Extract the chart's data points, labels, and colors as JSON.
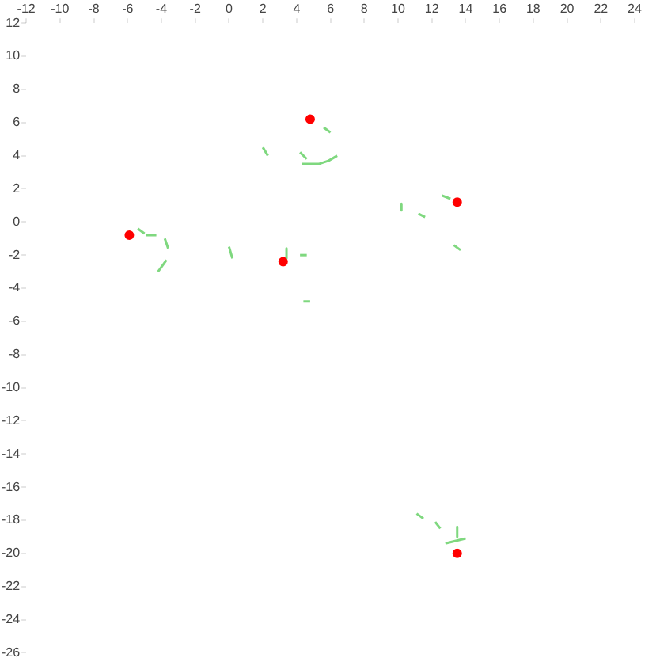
{
  "chart_data": {
    "type": "scatter",
    "xlim": [
      -12,
      24
    ],
    "xticks": [
      -12,
      -10,
      -8,
      -6,
      -4,
      -2,
      0,
      2,
      4,
      6,
      8,
      10,
      12,
      14,
      16,
      18,
      20,
      22,
      24
    ],
    "ylim": [
      -26,
      12
    ],
    "yticks": [
      12,
      10,
      8,
      6,
      4,
      2,
      0,
      -2,
      -4,
      -6,
      -8,
      -10,
      -12,
      -14,
      -16,
      -18,
      -20,
      -22,
      -24,
      -26
    ],
    "grid": false,
    "legend": false,
    "marker": "none",
    "line_style": "solid",
    "series": [
      {
        "color": "#ff0000",
        "marker": "circle",
        "x": [
          4.8,
          13.5,
          -5.9,
          3.2,
          13.5
        ],
        "values": [
          6.2,
          1.2,
          -0.8,
          -2.4,
          -20
        ]
      },
      {
        "type": "line",
        "color": "#7fd87f",
        "x": [
          4.3,
          5.3,
          5.9,
          6.4
        ],
        "values": [
          3.5,
          3.5,
          3.7,
          4.0
        ]
      },
      {
        "type": "line",
        "color": "#7fd87f",
        "x": [
          2.0,
          2.3
        ],
        "values": [
          4.5,
          4.0
        ]
      },
      {
        "type": "line",
        "color": "#7fd87f",
        "x": [
          4.2,
          4.6
        ],
        "values": [
          4.2,
          3.8
        ]
      },
      {
        "type": "line",
        "color": "#7fd87f",
        "x": [
          5.6,
          6.0
        ],
        "values": [
          5.7,
          5.4
        ]
      },
      {
        "type": "line",
        "color": "#7fd87f",
        "x": [
          -5.4,
          -5.0
        ],
        "values": [
          -0.4,
          -0.7
        ]
      },
      {
        "type": "line",
        "color": "#7fd87f",
        "x": [
          -4.9,
          -4.3
        ],
        "values": [
          -0.8,
          -0.8
        ]
      },
      {
        "type": "line",
        "color": "#7fd87f",
        "x": [
          -3.8,
          -3.6
        ],
        "values": [
          -1.0,
          -1.6
        ]
      },
      {
        "type": "line",
        "color": "#7fd87f",
        "x": [
          -3.7,
          -4.2
        ],
        "values": [
          -2.3,
          -3.0
        ]
      },
      {
        "type": "line",
        "color": "#7fd87f",
        "x": [
          0,
          0.2
        ],
        "values": [
          -1.5,
          -2.2
        ]
      },
      {
        "type": "line",
        "color": "#7fd87f",
        "x": [
          3.4,
          3.4
        ],
        "values": [
          -1.6,
          -2.2
        ]
      },
      {
        "type": "line",
        "color": "#7fd87f",
        "x": [
          4.2,
          4.6
        ],
        "values": [
          -2.0,
          -2.0
        ]
      },
      {
        "type": "line",
        "color": "#7fd87f",
        "x": [
          4.4,
          4.8
        ],
        "values": [
          -4.8,
          -4.8
        ]
      },
      {
        "type": "line",
        "color": "#7fd87f",
        "x": [
          10.2,
          10.2
        ],
        "values": [
          1.1,
          0.7
        ]
      },
      {
        "type": "line",
        "color": "#7fd87f",
        "x": [
          11.2,
          11.6
        ],
        "values": [
          0.5,
          0.3
        ]
      },
      {
        "type": "line",
        "color": "#7fd87f",
        "x": [
          12.6,
          13.1
        ],
        "values": [
          1.6,
          1.4
        ]
      },
      {
        "type": "line",
        "color": "#7fd87f",
        "x": [
          13.3,
          13.7
        ],
        "values": [
          -1.4,
          -1.7
        ]
      },
      {
        "type": "line",
        "color": "#7fd87f",
        "x": [
          11.1,
          11.5
        ],
        "values": [
          -17.6,
          -17.9
        ]
      },
      {
        "type": "line",
        "color": "#7fd87f",
        "x": [
          12.2,
          12.5
        ],
        "values": [
          -18.1,
          -18.5
        ]
      },
      {
        "type": "line",
        "color": "#7fd87f",
        "x": [
          13.5,
          13.5
        ],
        "values": [
          -18.4,
          -19.0
        ]
      },
      {
        "type": "line",
        "color": "#7fd87f",
        "x": [
          12.8,
          14.0
        ],
        "values": [
          -19.4,
          -19.1
        ]
      }
    ]
  }
}
